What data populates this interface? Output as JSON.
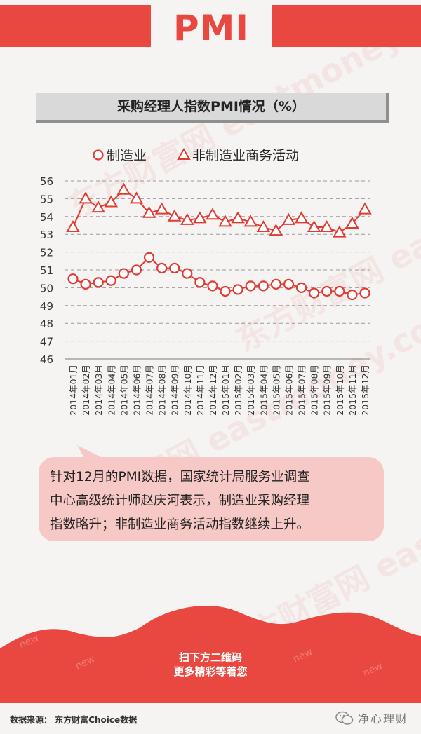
{
  "header": {
    "title": "PMI"
  },
  "chart_heading": "采购经理人指数PMI情况（%）",
  "watermark_text": "东方财富网 eastmoney.com",
  "chart_data": {
    "type": "line",
    "categories": [
      "2014年01月",
      "2014年02月",
      "2014年03月",
      "2014年04月",
      "2014年05月",
      "2014年06月",
      "2014年07月",
      "2014年08月",
      "2014年09月",
      "2014年10月",
      "2014年11月",
      "2014年12月",
      "2015年01月",
      "2015年02月",
      "2015年03月",
      "2015年04月",
      "2015年05月",
      "2015年06月",
      "2015年07月",
      "2015年08月",
      "2015年09月",
      "2015年10月",
      "2015年11月",
      "2015年12月"
    ],
    "series": [
      {
        "name": "制造业",
        "marker": "circle",
        "color": "#e03a32",
        "values": [
          50.5,
          50.2,
          50.3,
          50.4,
          50.8,
          51.0,
          51.7,
          51.1,
          51.1,
          50.8,
          50.3,
          50.1,
          49.8,
          49.9,
          50.1,
          50.1,
          50.2,
          50.2,
          50.0,
          49.7,
          49.8,
          49.8,
          49.6,
          49.7
        ]
      },
      {
        "name": "非制造业商务活动",
        "marker": "triangle",
        "color": "#e03a32",
        "values": [
          53.4,
          55.0,
          54.5,
          54.8,
          55.5,
          55.0,
          54.2,
          54.4,
          54.0,
          53.8,
          53.9,
          54.1,
          53.7,
          53.9,
          53.7,
          53.4,
          53.2,
          53.8,
          53.9,
          53.4,
          53.4,
          53.1,
          53.6,
          54.4
        ]
      }
    ],
    "y_ticks": [
      46,
      47,
      48,
      49,
      50,
      51,
      52,
      53,
      54,
      55,
      56
    ],
    "ylim": [
      46,
      56
    ],
    "grid": true,
    "legend_position": "top"
  },
  "callout": {
    "lines": [
      "针对12月的PMI数据，国家统计局服务业调查",
      "中心高级统计师赵庆河表示，制造业采购经理",
      "指数略升；非制造业商务活动指数继续上升。"
    ]
  },
  "qr": {
    "line1": "扫下方二维码",
    "line2": "更多精彩等着您"
  },
  "footer": {
    "source": "数据来源：  东方财富Choice数据",
    "brand": "净心理财"
  },
  "colors": {
    "accent": "#e8483f",
    "callout_bg": "#f7c9c6",
    "wave": "#e8483f"
  }
}
